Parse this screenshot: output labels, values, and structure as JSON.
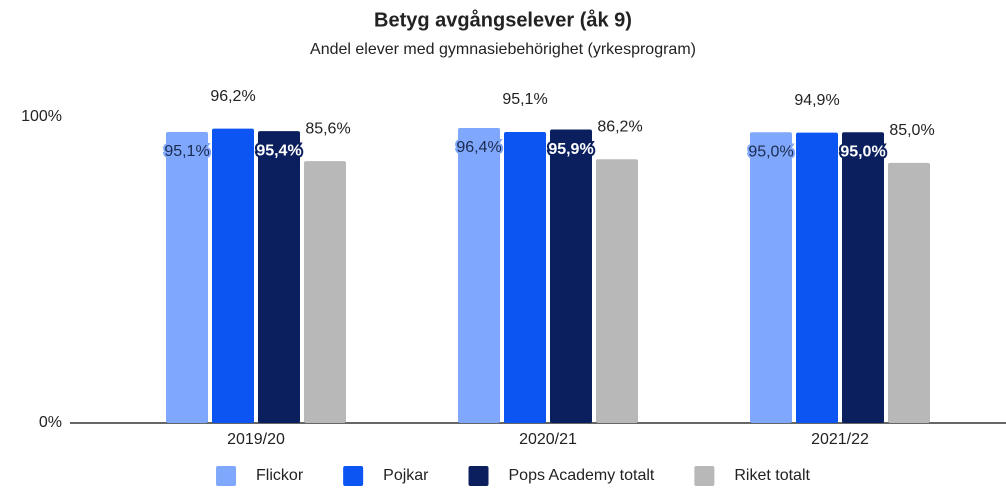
{
  "chart_data": {
    "type": "bar",
    "title": "Betyg avgångselever (åk 9)",
    "subtitle": "Andel elever med gymnasiebehörighet (yrkesprogram)",
    "categories": [
      "2019/20",
      "2020/21",
      "2021/22"
    ],
    "series": [
      {
        "name": "Flickor",
        "color": "#7fa7fb",
        "values": [
          95.1,
          96.4,
          95.0
        ],
        "value_labels": [
          "95,1%",
          "96,4%",
          "95,0%"
        ]
      },
      {
        "name": "Pojkar",
        "color": "#0c55f2",
        "values": [
          96.2,
          95.1,
          94.9
        ],
        "value_labels": [
          "96,2%",
          "95,1%",
          "94,9%"
        ]
      },
      {
        "name": "Pops Academy totalt",
        "color": "#0b1f5e",
        "values": [
          95.4,
          95.9,
          95.0
        ],
        "value_labels": [
          "95,4%",
          "95,9%",
          "95,0%"
        ]
      },
      {
        "name": "Riket totalt",
        "color": "#b8b8b8",
        "values": [
          85.6,
          86.2,
          85.0
        ],
        "value_labels": [
          "85,6%",
          "86,2%",
          "85,0%"
        ]
      }
    ],
    "ylim": [
      0,
      100
    ],
    "yticks": [
      {
        "value": 0,
        "label": "0%"
      },
      {
        "value": 100,
        "label": "100%"
      }
    ],
    "grid": false,
    "legend": "bottom"
  }
}
